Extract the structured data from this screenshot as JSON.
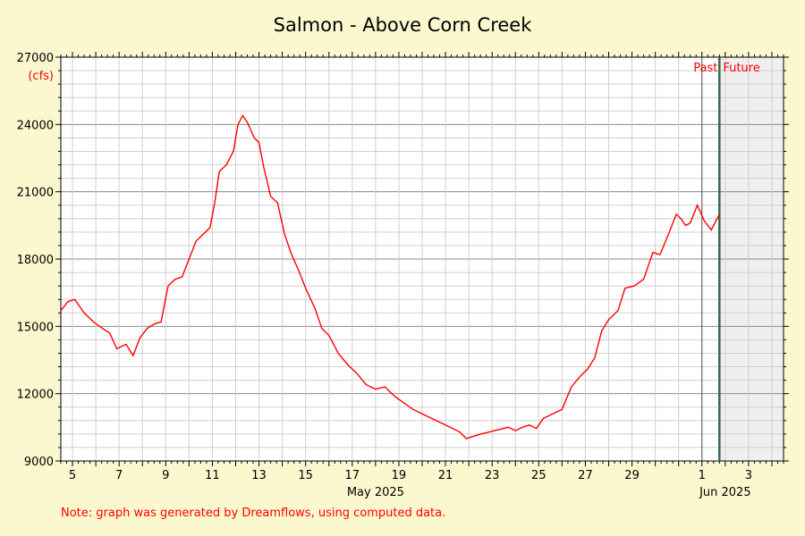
{
  "chart_data": {
    "type": "line",
    "title": "Salmon - Above Corn Creek",
    "ylabel": "(cfs)",
    "ylim": [
      9000,
      27000
    ],
    "y_ticks": [
      9000,
      12000,
      15000,
      18000,
      21000,
      24000,
      27000
    ],
    "x_range_days": [
      4.5,
      35.5
    ],
    "x_ticks": [
      {
        "label": "5",
        "day": 5
      },
      {
        "label": "7",
        "day": 7
      },
      {
        "label": "9",
        "day": 9
      },
      {
        "label": "11",
        "day": 11
      },
      {
        "label": "13",
        "day": 13
      },
      {
        "label": "15",
        "day": 15
      },
      {
        "label": "17",
        "day": 17
      },
      {
        "label": "19",
        "day": 19
      },
      {
        "label": "21",
        "day": 21
      },
      {
        "label": "23",
        "day": 23
      },
      {
        "label": "25",
        "day": 25
      },
      {
        "label": "27",
        "day": 27
      },
      {
        "label": "29",
        "day": 29
      },
      {
        "label": "1",
        "day": 32
      },
      {
        "label": "3",
        "day": 34
      }
    ],
    "month_labels": [
      {
        "label": "May 2025",
        "day": 18
      },
      {
        "label": "Jun 2025",
        "day": 33
      }
    ],
    "now_day": 32.75,
    "past_label": "Past",
    "future_label": "Future",
    "series": [
      {
        "name": "",
        "color": "#ff0000",
        "x": [
          4.5,
          4.8,
          5.1,
          5.5,
          5.9,
          6.3,
          6.6,
          6.9,
          7.1,
          7.3,
          7.6,
          7.9,
          8.2,
          8.5,
          8.8,
          9.1,
          9.4,
          9.7,
          10.0,
          10.3,
          10.6,
          10.9,
          11.1,
          11.3,
          11.6,
          11.9,
          12.1,
          12.3,
          12.5,
          12.8,
          13.0,
          13.2,
          13.5,
          13.8,
          14.1,
          14.4,
          14.7,
          15.0,
          15.4,
          15.7,
          16.0,
          16.4,
          16.8,
          17.2,
          17.6,
          18.0,
          18.4,
          18.8,
          19.2,
          19.6,
          20.0,
          20.4,
          20.8,
          21.2,
          21.6,
          21.9,
          22.2,
          22.5,
          22.9,
          23.3,
          23.7,
          24.0,
          24.3,
          24.6,
          24.9,
          25.2,
          25.6,
          26.0,
          26.4,
          26.8,
          27.1,
          27.4,
          27.7,
          28.0,
          28.4,
          28.7,
          29.1,
          29.5,
          29.9,
          30.2,
          30.6,
          30.9,
          31.1,
          31.3,
          31.5,
          31.8,
          32.1,
          32.4,
          32.6,
          32.75
        ],
        "y": [
          15700,
          16100,
          16200,
          15600,
          15200,
          14900,
          14700,
          14000,
          14100,
          14200,
          13700,
          14500,
          14900,
          15100,
          15200,
          16800,
          17100,
          17200,
          18000,
          18800,
          19100,
          19400,
          20500,
          21900,
          22200,
          22800,
          24000,
          24400,
          24100,
          23400,
          23200,
          22100,
          20800,
          20500,
          19100,
          18200,
          17500,
          16700,
          15800,
          14900,
          14600,
          13800,
          13300,
          12900,
          12400,
          12200,
          12300,
          11900,
          11600,
          11300,
          11100,
          10900,
          10700,
          10500,
          10300,
          10000,
          10100,
          10200,
          10300,
          10400,
          10500,
          10350,
          10500,
          10600,
          10450,
          10900,
          11100,
          11300,
          12300,
          12800,
          13100,
          13600,
          14800,
          15300,
          15700,
          16700,
          16800,
          17100,
          18300,
          18200,
          19200,
          20000,
          19800,
          19500,
          19600,
          20400,
          19700,
          19300,
          19700,
          20000
        ]
      }
    ]
  },
  "note": "Note: graph was generated by Dreamflows, using computed data."
}
